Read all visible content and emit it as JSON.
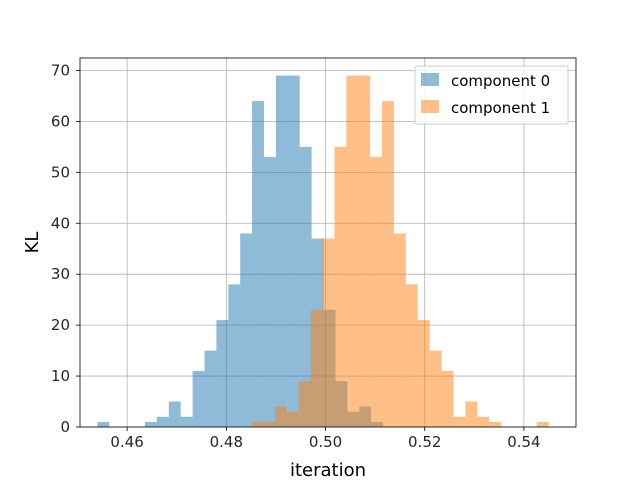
{
  "chart_data": {
    "type": "bar",
    "subtype": "overlapping-histogram",
    "title": "",
    "xlabel": "iteration",
    "ylabel": "KL",
    "xlim": [
      0.4505,
      0.5505
    ],
    "ylim": [
      0,
      72.45
    ],
    "xticks": [
      0.46,
      0.48,
      0.5,
      0.52,
      0.54
    ],
    "xtick_labels": [
      "0.46",
      "0.48",
      "0.50",
      "0.52",
      "0.54"
    ],
    "yticks": [
      0,
      10,
      20,
      30,
      40,
      50,
      60,
      70
    ],
    "ytick_labels": [
      "0",
      "10",
      "20",
      "30",
      "40",
      "50",
      "60",
      "70"
    ],
    "grid": true,
    "legend_position": "upper right",
    "series": [
      {
        "name": "component 0",
        "color": "#1f77b4",
        "alpha": 0.5,
        "bin_start": 0.454,
        "bin_width": 0.0024,
        "counts": [
          1,
          0,
          0,
          0,
          1,
          2,
          5,
          2,
          11,
          15,
          21,
          28,
          38,
          64,
          53,
          69,
          69,
          55,
          37,
          23,
          9,
          3,
          4,
          1
        ]
      },
      {
        "name": "component 1",
        "color": "#ff7f0e",
        "alpha": 0.5,
        "bin_start": 0.485,
        "bin_width": 0.0024,
        "counts": [
          1,
          1,
          4,
          3,
          9,
          23,
          37,
          55,
          69,
          69,
          53,
          64,
          38,
          28,
          21,
          15,
          11,
          2,
          5,
          2,
          1,
          0,
          0,
          0,
          1
        ]
      }
    ]
  }
}
